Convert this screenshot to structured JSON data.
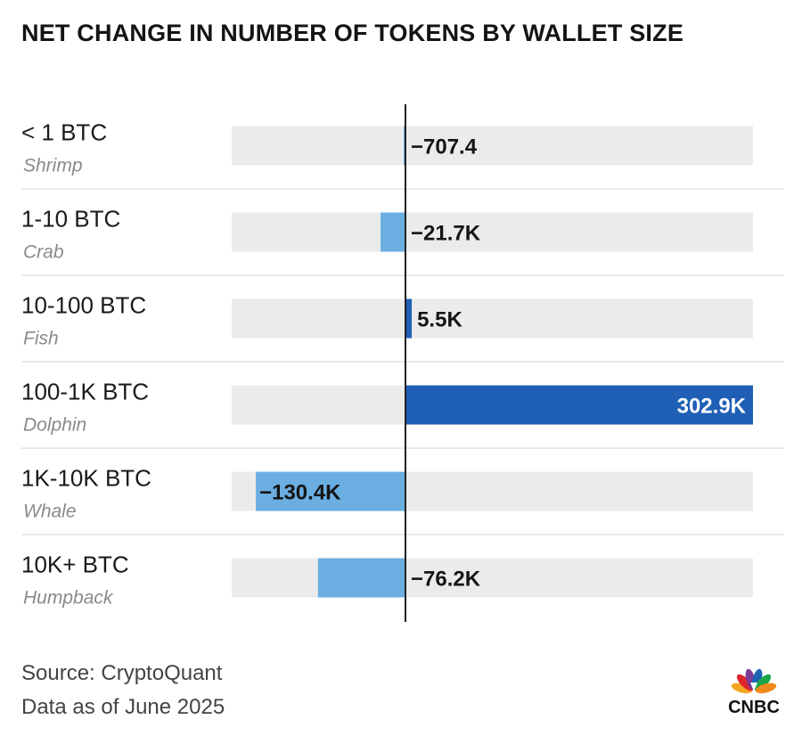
{
  "title": "NET CHANGE IN NUMBER OF TOKENS BY WALLET SIZE",
  "source": "Source: CryptoQuant",
  "asof": "Data as of June 2025",
  "logo_text": "CNBC",
  "colors": {
    "positive": "#1f5fb6",
    "negative": "#6aaee2",
    "track": "#ebebeb",
    "axis": "#222222",
    "divider": "#e3e3e3"
  },
  "chart_data": {
    "type": "bar",
    "orientation": "horizontal",
    "title": "NET CHANGE IN NUMBER OF TOKENS BY WALLET SIZE",
    "categories": [
      "< 1 BTC",
      "1-10 BTC",
      "10-100 BTC",
      "100-1K BTC",
      "1K-10K BTC",
      "10K+ BTC"
    ],
    "subcategories": [
      "Shrimp",
      "Crab",
      "Fish",
      "Dolphin",
      "Whale",
      "Humpback"
    ],
    "values": [
      -707.4,
      -21700,
      5500,
      302900,
      -130400,
      -76200
    ],
    "labels": [
      "−707.4",
      "−21.7K",
      "5.5K",
      "302.9K",
      "−130.4K",
      "−76.2K"
    ],
    "xlim": [
      -150000,
      302900
    ],
    "xlabel": "",
    "ylabel": ""
  }
}
